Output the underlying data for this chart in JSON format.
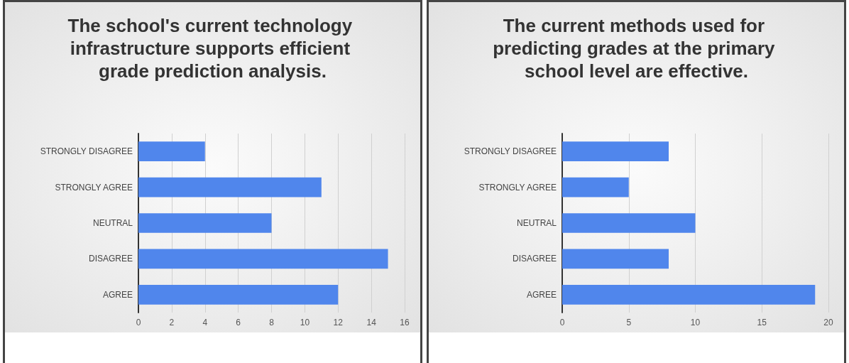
{
  "chart_data": [
    {
      "type": "bar",
      "orientation": "horizontal",
      "title": "The school's current technology infrastructure supports efficient grade prediction analysis.",
      "categories": [
        "STRONGLY DISAGREE",
        "STRONGLY AGREE",
        "NEUTRAL",
        "DISAGREE",
        "AGREE"
      ],
      "values": [
        4,
        11,
        8,
        15,
        12
      ],
      "color": "#5086ec",
      "xlim": [
        0,
        16
      ],
      "xticks": [
        0,
        2,
        4,
        6,
        8,
        10,
        12,
        14,
        16
      ],
      "grid": "x"
    },
    {
      "type": "bar",
      "orientation": "horizontal",
      "title": "The current methods used for predicting grades at the primary school level are effective.",
      "categories": [
        "STRONGLY DISAGREE",
        "STRONGLY AGREE",
        "NEUTRAL",
        "DISAGREE",
        "AGREE"
      ],
      "values": [
        8,
        5,
        10,
        8,
        19
      ],
      "color": "#5086ec",
      "xlim": [
        0,
        20
      ],
      "xticks": [
        0,
        5,
        10,
        15,
        20
      ],
      "grid": "x"
    }
  ]
}
